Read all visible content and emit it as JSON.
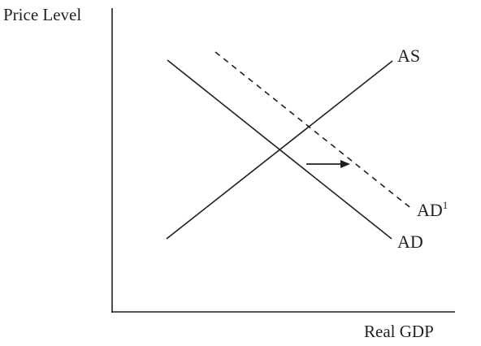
{
  "diagram": {
    "y_axis_label": "Price Level",
    "x_axis_label": "Real GDP",
    "curves": {
      "as": "AS",
      "ad": "AD",
      "ad_shifted": "AD",
      "ad_shifted_superscript": "1"
    },
    "shift_direction": "right",
    "colors": {
      "ink": "#231f20",
      "background": "#ffffff"
    }
  }
}
